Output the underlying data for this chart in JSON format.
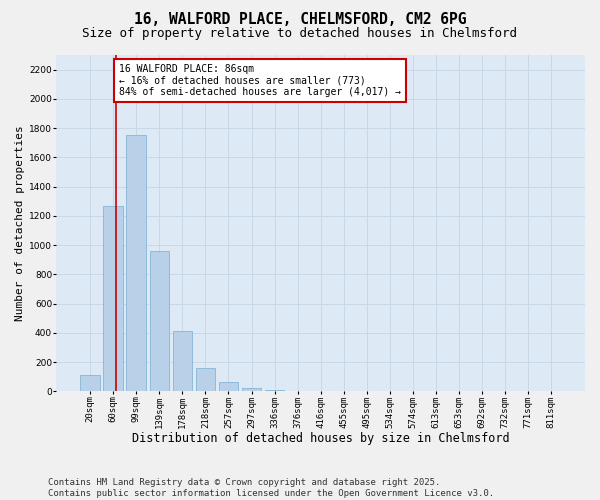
{
  "title_line1": "16, WALFORD PLACE, CHELMSFORD, CM2 6PG",
  "title_line2": "Size of property relative to detached houses in Chelmsford",
  "xlabel": "Distribution of detached houses by size in Chelmsford",
  "ylabel": "Number of detached properties",
  "categories": [
    "20sqm",
    "60sqm",
    "99sqm",
    "139sqm",
    "178sqm",
    "218sqm",
    "257sqm",
    "297sqm",
    "336sqm",
    "376sqm",
    "416sqm",
    "455sqm",
    "495sqm",
    "534sqm",
    "574sqm",
    "613sqm",
    "653sqm",
    "692sqm",
    "732sqm",
    "771sqm",
    "811sqm"
  ],
  "values": [
    110,
    1270,
    1750,
    960,
    410,
    160,
    65,
    25,
    10,
    0,
    0,
    0,
    0,
    0,
    0,
    0,
    0,
    0,
    0,
    0,
    0
  ],
  "bar_color": "#b8d0e8",
  "bar_edge_color": "#7aadd4",
  "grid_color": "#c8d8e8",
  "background_color": "#ddeaf6",
  "fig_background_color": "#f0f0f0",
  "annotation_box_text": "16 WALFORD PLACE: 86sqm\n← 16% of detached houses are smaller (773)\n84% of semi-detached houses are larger (4,017) →",
  "annotation_box_color": "#cc0000",
  "vline_color": "#cc0000",
  "ylim": [
    0,
    2300
  ],
  "yticks": [
    0,
    200,
    400,
    600,
    800,
    1000,
    1200,
    1400,
    1600,
    1800,
    2000,
    2200
  ],
  "footnote": "Contains HM Land Registry data © Crown copyright and database right 2025.\nContains public sector information licensed under the Open Government Licence v3.0.",
  "title_fontsize": 10.5,
  "subtitle_fontsize": 9,
  "tick_fontsize": 6.5,
  "xlabel_fontsize": 8.5,
  "ylabel_fontsize": 8,
  "footnote_fontsize": 6.5,
  "annotation_fontsize": 7
}
